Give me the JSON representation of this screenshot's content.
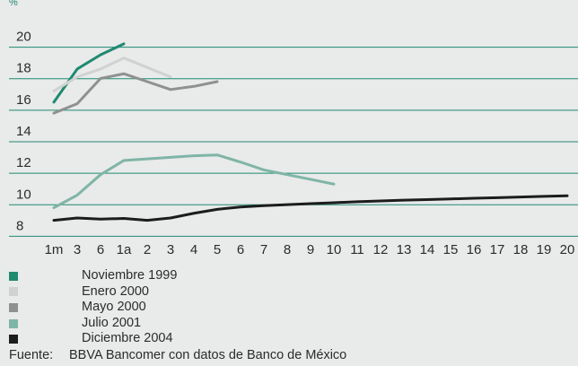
{
  "chart_data": {
    "type": "line",
    "ylabel": "%",
    "ylim": [
      7,
      21
    ],
    "yticks": [
      8,
      10,
      12,
      14,
      16,
      18,
      20
    ],
    "grid": true,
    "legend_position": "bottom-left",
    "xticks": [
      "1m",
      "3",
      "6",
      "1a",
      "2",
      "3",
      "4",
      "5",
      "6",
      "7",
      "8",
      "9",
      "10",
      "11",
      "12",
      "13",
      "14",
      "15",
      "16",
      "17",
      "18",
      "19",
      "20"
    ],
    "series": [
      {
        "name": "Noviembre 1999",
        "color": "#1f8a70",
        "x": [
          0,
          1,
          2,
          3
        ],
        "y": [
          16.0,
          18.1,
          19.0,
          19.7
        ]
      },
      {
        "name": "Enero 2000",
        "color": "#d0d2d1",
        "x": [
          0,
          1,
          2,
          3,
          4,
          5
        ],
        "y": [
          16.7,
          17.6,
          18.1,
          18.8,
          18.2,
          17.6
        ]
      },
      {
        "name": "Mayo 2000",
        "color": "#8e9190",
        "x": [
          0,
          1,
          2,
          3,
          4,
          5,
          6,
          7
        ],
        "y": [
          15.3,
          15.9,
          17.5,
          17.8,
          17.3,
          16.8,
          17.0,
          17.3
        ]
      },
      {
        "name": "Julio 2001",
        "color": "#7fb5a6",
        "x": [
          0,
          1,
          2,
          3,
          4,
          5,
          6,
          7,
          8,
          9,
          10,
          11,
          12
        ],
        "y": [
          9.3,
          10.1,
          11.4,
          12.3,
          12.4,
          12.5,
          12.6,
          12.65,
          12.2,
          11.7,
          11.4,
          11.1,
          10.8
        ]
      },
      {
        "name": "Diciembre 2004",
        "color": "#1c1c1c",
        "x": [
          0,
          1,
          2,
          3,
          4,
          5,
          6,
          7,
          8,
          9,
          10,
          11,
          12,
          13,
          14,
          15,
          16,
          17,
          18,
          19,
          20,
          21,
          22
        ],
        "y": [
          8.5,
          8.65,
          8.58,
          8.62,
          8.5,
          8.65,
          8.95,
          9.2,
          9.35,
          9.43,
          9.5,
          9.56,
          9.62,
          9.68,
          9.73,
          9.78,
          9.82,
          9.86,
          9.9,
          9.94,
          9.98,
          10.02,
          10.06
        ]
      }
    ]
  },
  "source": {
    "label": "Fuente:",
    "text": "BBVA Bancomer con datos de Banco de México"
  }
}
